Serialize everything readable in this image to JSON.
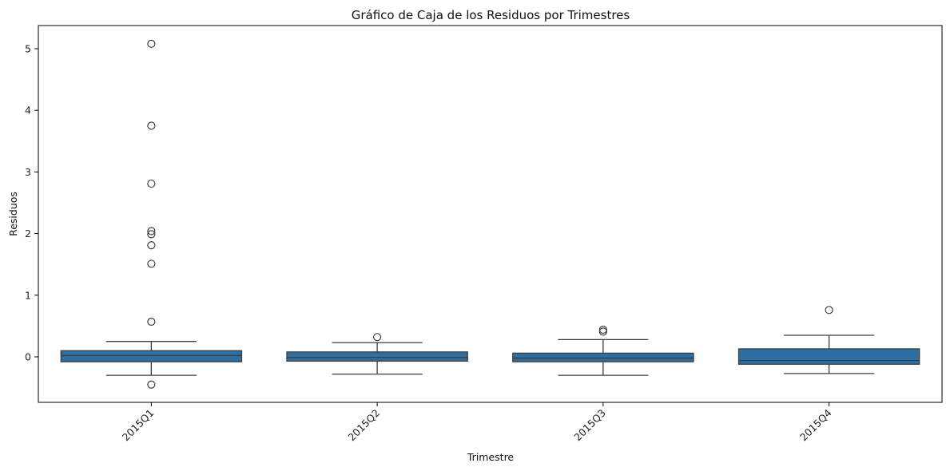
{
  "chart_data": {
    "type": "box",
    "title": "Gráfico de Caja de los Residuos por Trimestres",
    "xlabel": "Trimestre",
    "ylabel": "Residuos",
    "ylim": [
      -0.75,
      5.35
    ],
    "yticks": [
      0,
      1,
      2,
      3,
      4,
      5
    ],
    "grid": false,
    "box_color": "#2d6fa3",
    "line_color": "#3d3d3d",
    "categories": [
      "2015Q1",
      "2015Q2",
      "2015Q3",
      "2015Q4"
    ],
    "boxes": [
      {
        "category": "2015Q1",
        "whisker_low": -0.3,
        "q1": -0.08,
        "median": 0.02,
        "q3": 0.1,
        "whisker_high": 0.25,
        "outliers": [
          5.08,
          3.75,
          2.81,
          2.04,
          1.99,
          1.81,
          1.51,
          0.57,
          -0.45
        ]
      },
      {
        "category": "2015Q2",
        "whisker_low": -0.28,
        "q1": -0.07,
        "median": -0.01,
        "q3": 0.08,
        "whisker_high": 0.23,
        "outliers": [
          0.32
        ]
      },
      {
        "category": "2015Q3",
        "whisker_low": -0.3,
        "q1": -0.08,
        "median": -0.02,
        "q3": 0.06,
        "whisker_high": 0.28,
        "outliers": [
          0.44,
          0.41
        ]
      },
      {
        "category": "2015Q4",
        "whisker_low": -0.27,
        "q1": -0.12,
        "median": -0.06,
        "q3": 0.13,
        "whisker_high": 0.35,
        "outliers": [
          0.76
        ]
      }
    ]
  }
}
